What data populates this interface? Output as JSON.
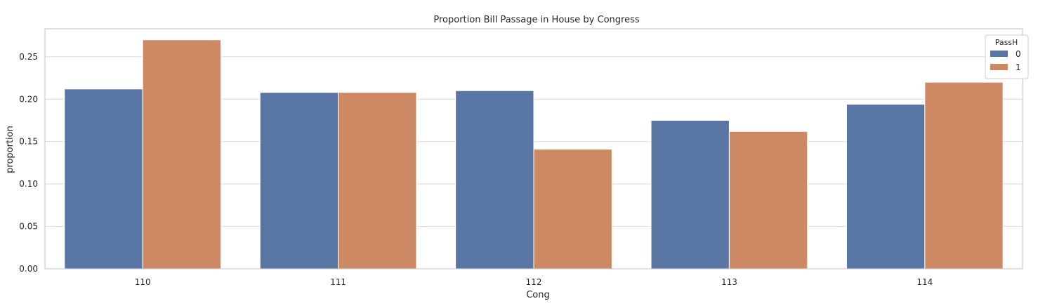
{
  "chart_data": {
    "type": "bar",
    "title": "Proportion Bill Passage in House by Congress",
    "xlabel": "Cong",
    "ylabel": "proportion",
    "categories": [
      "110",
      "111",
      "112",
      "113",
      "114"
    ],
    "series": [
      {
        "name": "0",
        "color": "#5875a4",
        "values": [
          0.212,
          0.208,
          0.21,
          0.175,
          0.194
        ]
      },
      {
        "name": "1",
        "color": "#cc8963",
        "values": [
          0.27,
          0.208,
          0.141,
          0.162,
          0.22
        ]
      }
    ],
    "ylim": [
      0,
      0.283
    ],
    "yticks": [
      0.0,
      0.05,
      0.1,
      0.15,
      0.2,
      0.25
    ],
    "ytick_labels": [
      "0.00",
      "0.05",
      "0.10",
      "0.15",
      "0.20",
      "0.25"
    ],
    "grid": true,
    "legend": {
      "title": "PassH",
      "position": "top-right"
    }
  }
}
